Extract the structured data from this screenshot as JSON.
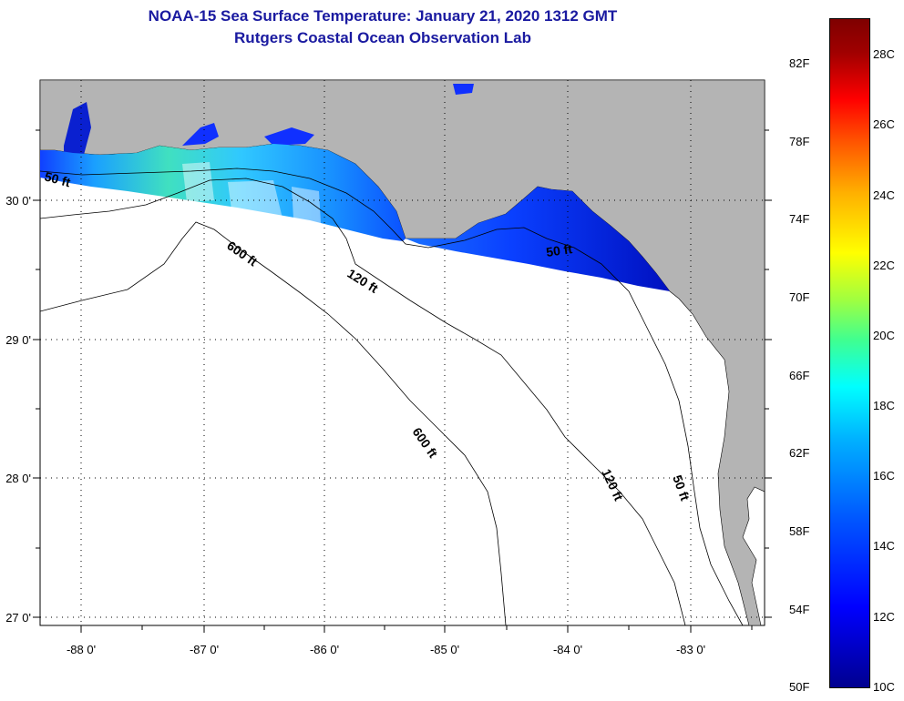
{
  "title": {
    "line1": "NOAA-15 Sea Surface Temperature:  January 21, 2020 1312 GMT",
    "line2": "Rutgers Coastal Ocean Observation Lab"
  },
  "axes": {
    "lon_labels": [
      "-88 0'",
      "-87 0'",
      "-86 0'",
      "-85 0'",
      "-84 0'",
      "-83 0'"
    ],
    "lat_labels": [
      "30 0'",
      "29 0'",
      "28 0'",
      "27 0'"
    ]
  },
  "contours": {
    "ft50": "50 ft",
    "ft120": "120 ft",
    "ft600": "600 ft"
  },
  "colorbar": {
    "fahrenheit": [
      "82F",
      "78F",
      "74F",
      "70F",
      "66F",
      "62F",
      "58F",
      "54F",
      "50F"
    ],
    "celsius": [
      "28C",
      "26C",
      "24C",
      "22C",
      "20C",
      "18C",
      "16C",
      "14C",
      "12C",
      "10C"
    ]
  },
  "colors": {
    "land": "#b4b4b4",
    "ocean_nodata": "#ffffff",
    "title": "#1a1aa0"
  }
}
